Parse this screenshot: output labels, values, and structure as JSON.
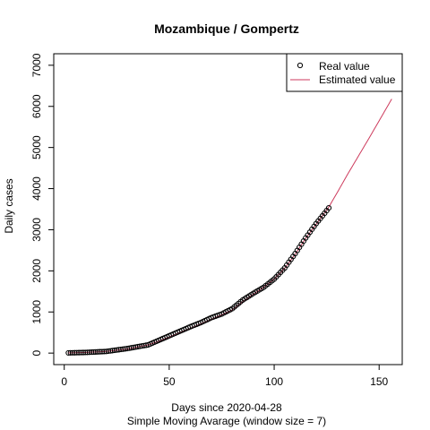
{
  "chart_data": {
    "type": "scatter",
    "title": "Mozambique / Gompertz",
    "xlabel": "Days since 2020-04-28",
    "xlabel_sub": "Simple Moving Avarage (window size = 7)",
    "ylabel": "Daily cases",
    "xlim": [
      -5,
      161
    ],
    "ylim": [
      -280,
      7280
    ],
    "x_ticks": [
      0,
      50,
      100,
      150
    ],
    "y_ticks": [
      0,
      1000,
      2000,
      3000,
      4000,
      5000,
      6000,
      7000
    ],
    "grid": false,
    "legend_position": "top-right",
    "legend": {
      "real": "Real value",
      "estimated": "Estimated value"
    },
    "colors": {
      "real": "#000000",
      "estimated": "#cd3a5c",
      "axis": "#000000"
    },
    "series": [
      {
        "name": "Real value",
        "style": "points",
        "anchors": [
          [
            2,
            5
          ],
          [
            10,
            15
          ],
          [
            20,
            40
          ],
          [
            30,
            110
          ],
          [
            40,
            200
          ],
          [
            45,
            310
          ],
          [
            50,
            420
          ],
          [
            55,
            530
          ],
          [
            60,
            640
          ],
          [
            65,
            740
          ],
          [
            70,
            860
          ],
          [
            75,
            950
          ],
          [
            80,
            1080
          ],
          [
            85,
            1290
          ],
          [
            90,
            1450
          ],
          [
            95,
            1600
          ],
          [
            100,
            1800
          ],
          [
            105,
            2070
          ],
          [
            110,
            2420
          ],
          [
            115,
            2800
          ],
          [
            120,
            3150
          ],
          [
            124,
            3400
          ],
          [
            126,
            3530
          ]
        ]
      },
      {
        "name": "Estimated value",
        "style": "line",
        "anchors": [
          [
            2,
            5
          ],
          [
            10,
            15
          ],
          [
            20,
            40
          ],
          [
            30,
            100
          ],
          [
            40,
            200
          ],
          [
            45,
            290
          ],
          [
            50,
            390
          ],
          [
            55,
            500
          ],
          [
            60,
            600
          ],
          [
            65,
            710
          ],
          [
            70,
            820
          ],
          [
            75,
            930
          ],
          [
            80,
            1050
          ],
          [
            85,
            1250
          ],
          [
            90,
            1430
          ],
          [
            95,
            1600
          ],
          [
            100,
            1800
          ],
          [
            105,
            2060
          ],
          [
            110,
            2400
          ],
          [
            115,
            2790
          ],
          [
            120,
            3130
          ],
          [
            126,
            3550
          ],
          [
            130,
            3900
          ],
          [
            135,
            4350
          ],
          [
            140,
            4780
          ],
          [
            145,
            5210
          ],
          [
            150,
            5650
          ],
          [
            156,
            6180
          ]
        ]
      }
    ]
  }
}
